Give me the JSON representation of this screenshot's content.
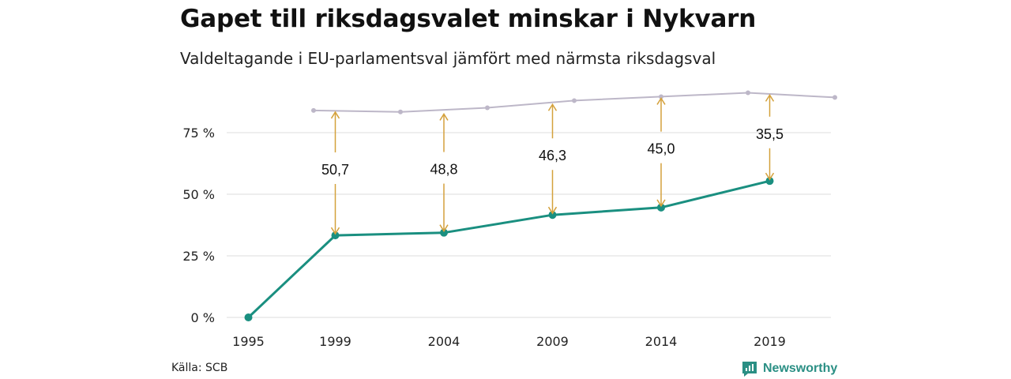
{
  "header": {
    "title": "Gapet till riksdagsvalet minskar i Nykvarn",
    "subtitle": "Valdeltagande i EU-parlamentsval jämfört med närmsta riksdagsval"
  },
  "footer": {
    "source": "Källa: SCB",
    "brand": "Newsworthy",
    "brand_icon": "newsworthy-logo-icon"
  },
  "colors": {
    "eu": "#1a8f80",
    "riksdag": "#bdb7c8",
    "arrows": "#d4a13c",
    "grid": "#dddddd"
  },
  "chart_data": {
    "type": "line",
    "title": "Gapet till riksdagsvalet minskar i Nykvarn",
    "subtitle": "Valdeltagande i EU-parlamentsval jämfört med närmsta riksdagsval",
    "xlabel": "",
    "ylabel": "",
    "ylim": [
      0,
      100
    ],
    "y_ticks": [
      0,
      25,
      50,
      75
    ],
    "y_tick_labels": [
      "0 %",
      "25 %",
      "50 %",
      "75 %"
    ],
    "x_ticks": [
      1995,
      1999,
      2004,
      2009,
      2014,
      2019
    ],
    "xlim": [
      1994,
      2022
    ],
    "grid": true,
    "series": [
      {
        "key": "eu",
        "x": [
          1995,
          1999,
          2004,
          2009,
          2014,
          2019
        ],
        "values": [
          0,
          33.3,
          34.4,
          41.6,
          44.6,
          55.4
        ]
      },
      {
        "key": "riksdag",
        "x": [
          1998,
          2002,
          2006,
          2010,
          2014,
          2018,
          2022
        ],
        "values": [
          84,
          83.4,
          85.1,
          88,
          89.6,
          91.2,
          89.3
        ]
      }
    ],
    "gaps": [
      {
        "year": 1999,
        "label": "50,7",
        "from": 33.3,
        "to": 84
      },
      {
        "year": 2004,
        "label": "48,8",
        "from": 34.4,
        "to": 83.2
      },
      {
        "year": 2009,
        "label": "46,3",
        "from": 41.6,
        "to": 87.1
      },
      {
        "year": 2014,
        "label": "45,0",
        "from": 44.6,
        "to": 89.6
      },
      {
        "year": 2019,
        "label": "35,5",
        "from": 55.4,
        "to": 90.9
      }
    ]
  }
}
